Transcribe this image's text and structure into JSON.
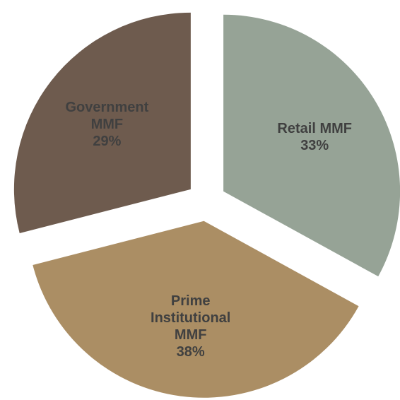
{
  "chart_data": {
    "type": "pie",
    "categories": [
      "Retail MMF",
      "Prime Institutional MMF",
      "Government MMF"
    ],
    "values": [
      33,
      38,
      29
    ],
    "value_labels": [
      "33%",
      "38%",
      "29%"
    ],
    "colors": [
      "#96a396",
      "#ab8e64",
      "#6e5b4e"
    ]
  }
}
